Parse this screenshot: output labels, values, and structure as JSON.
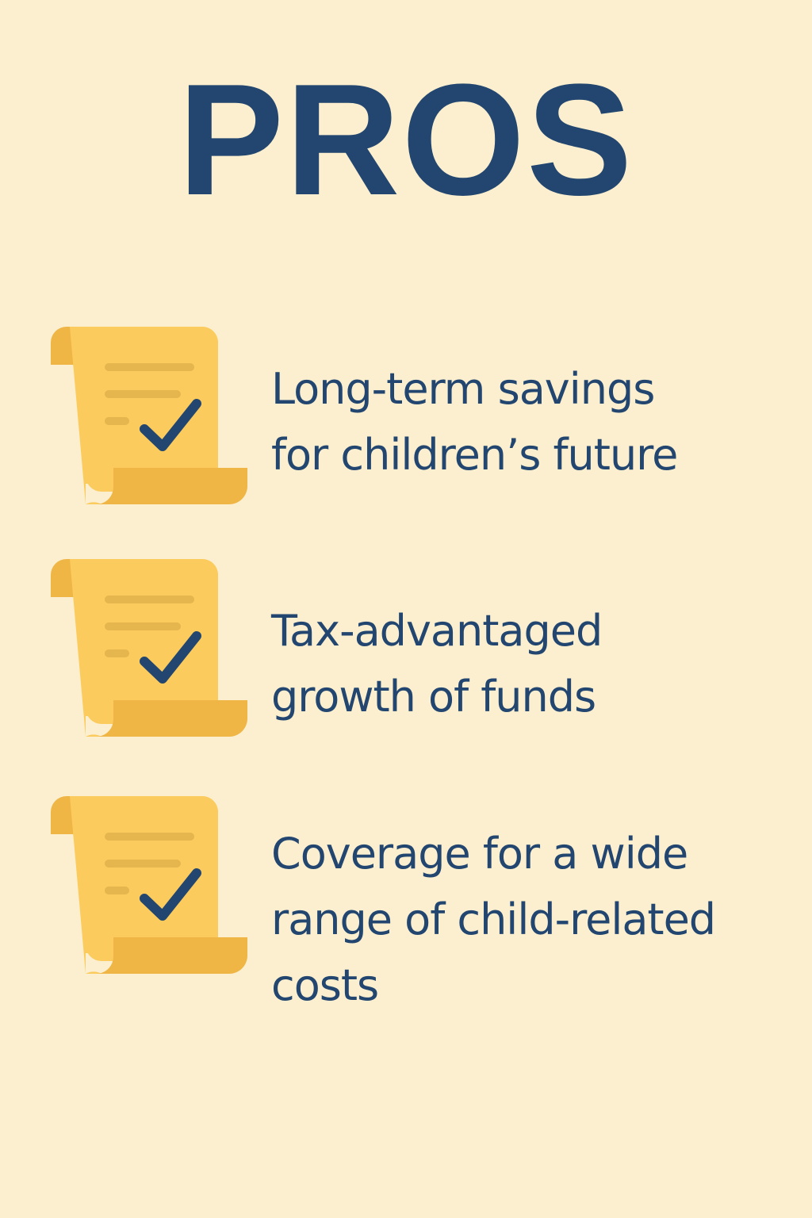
{
  "title": "PROS",
  "colors": {
    "background": "#fbefcf",
    "text": "#22466f",
    "scroll": "#fccb5e",
    "scroll_shade": "#efb545",
    "check": "#22466f"
  },
  "items": [
    {
      "icon": "scroll-checkmark-icon",
      "lines": [
        "Long-term savings",
        "for children’s future"
      ]
    },
    {
      "icon": "scroll-checkmark-icon",
      "lines": [
        "Tax-advantaged",
        "growth of funds"
      ]
    },
    {
      "icon": "scroll-checkmark-icon",
      "lines": [
        "Coverage for a wide",
        "range of child-related",
        "costs"
      ]
    }
  ]
}
